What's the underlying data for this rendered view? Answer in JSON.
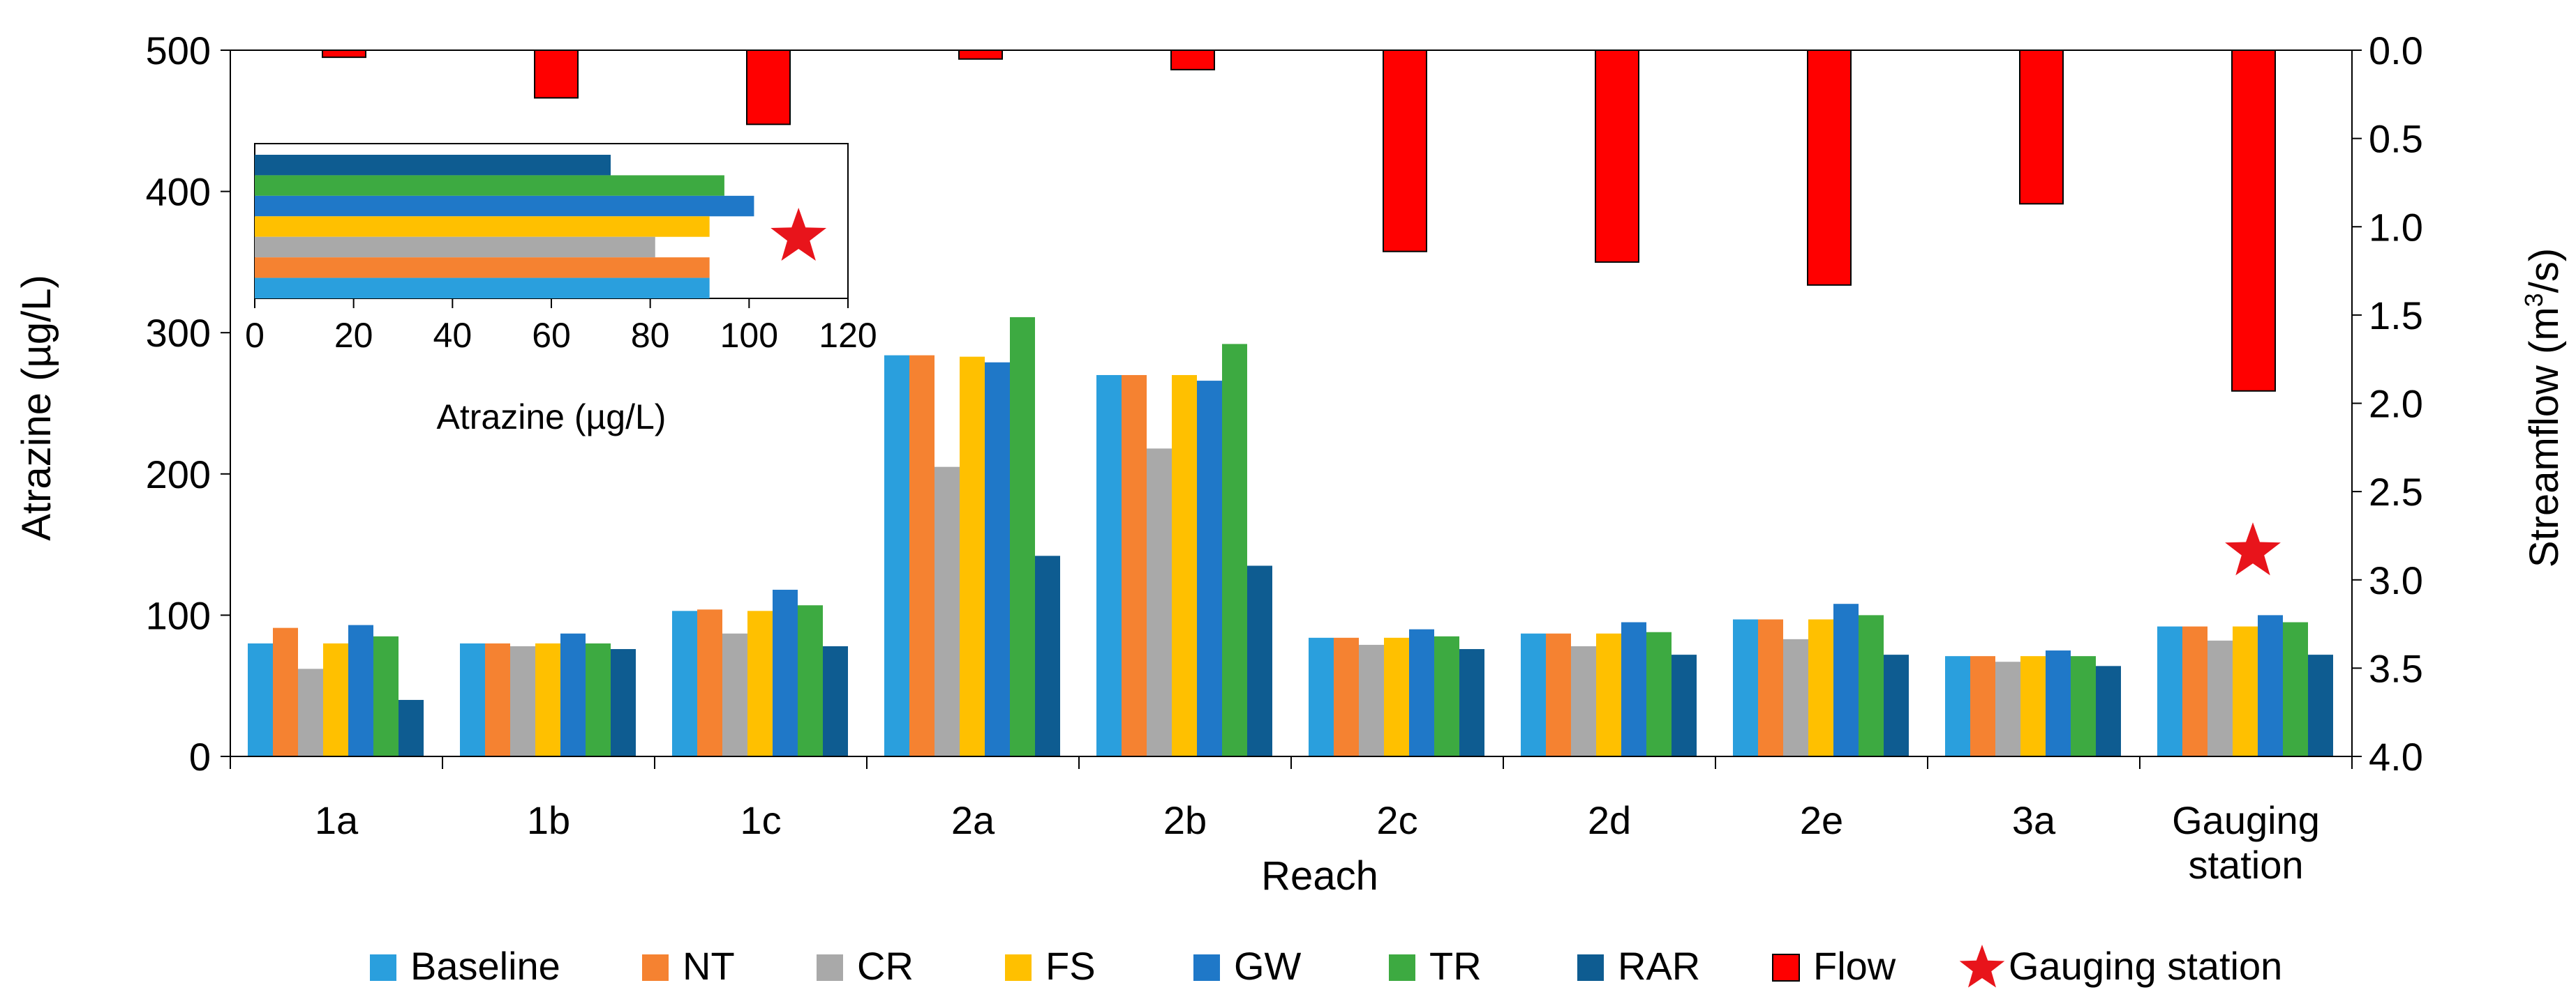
{
  "chart_data": [
    {
      "id": "main",
      "type": "bar",
      "xlabel": "Reach",
      "ylabel": "Atrazine (µg/L)",
      "y2label_base": "Streamflow (m",
      "y2label_sup": "3",
      "y2label_end": "/s)",
      "ylim": [
        0,
        500
      ],
      "yticks": [
        "0",
        "100",
        "200",
        "300",
        "400",
        "500"
      ],
      "y2lim": [
        0.0,
        4.0
      ],
      "y2_inverted": true,
      "y2ticks": [
        "0.0",
        "0.5",
        "1.0",
        "1.5",
        "2.0",
        "2.5",
        "3.0",
        "3.5",
        "4.0"
      ],
      "categories": [
        [
          "1a"
        ],
        [
          "1b"
        ],
        [
          "1c"
        ],
        [
          "2a"
        ],
        [
          "2b"
        ],
        [
          "2c"
        ],
        [
          "2d"
        ],
        [
          "2e"
        ],
        [
          "3a"
        ],
        [
          "Gauging",
          "station"
        ]
      ],
      "series": [
        {
          "name": "Baseline",
          "color": "#2A9FDD",
          "values": [
            80,
            80,
            103,
            284,
            270,
            84,
            87,
            97,
            71,
            92
          ]
        },
        {
          "name": "NT",
          "color": "#F58231",
          "values": [
            91,
            80,
            104,
            284,
            270,
            84,
            87,
            97,
            71,
            92
          ]
        },
        {
          "name": "CR",
          "color": "#A9A9A9",
          "values": [
            62,
            78,
            87,
            205,
            218,
            79,
            78,
            83,
            67,
            82
          ]
        },
        {
          "name": "FS",
          "color": "#FFC000",
          "values": [
            80,
            80,
            103,
            283,
            270,
            84,
            87,
            97,
            71,
            92
          ]
        },
        {
          "name": "GW",
          "color": "#1F78C8",
          "values": [
            93,
            87,
            118,
            279,
            266,
            90,
            95,
            108,
            75,
            100
          ]
        },
        {
          "name": "TR",
          "color": "#3DAA41",
          "values": [
            85,
            80,
            107,
            311,
            292,
            85,
            88,
            100,
            71,
            95
          ]
        },
        {
          "name": "RAR",
          "color": "#0E5C91",
          "values": [
            40,
            76,
            78,
            142,
            135,
            76,
            72,
            72,
            64,
            72
          ]
        }
      ],
      "flow": {
        "name": "Flow",
        "color": "#FF0000",
        "edge": "#000000",
        "values": [
          0.04,
          0.27,
          0.42,
          0.05,
          0.11,
          1.14,
          1.2,
          1.33,
          0.87,
          1.93
        ]
      },
      "star": {
        "category_index": 9,
        "y2_value": 2.84,
        "color": "#E8141B"
      }
    },
    {
      "id": "inset",
      "type": "bar",
      "orientation": "horizontal",
      "xlabel": "Atrazine (µg/L)",
      "xlim": [
        0,
        120
      ],
      "xticks": [
        "0",
        "20",
        "40",
        "60",
        "80",
        "100",
        "120"
      ],
      "series_order_top_to_bottom": [
        "RAR",
        "TR",
        "GW",
        "FS",
        "CR",
        "NT",
        "Baseline"
      ],
      "values": {
        "RAR": 72,
        "TR": 95,
        "GW": 101,
        "FS": 92,
        "CR": 81,
        "NT": 92,
        "Baseline": 92
      },
      "star": {
        "x_value": 110,
        "color": "#E8141B"
      }
    }
  ],
  "legend": {
    "items": [
      {
        "label": "Baseline",
        "color": "#2A9FDD",
        "kind": "bar"
      },
      {
        "label": "NT",
        "color": "#F58231",
        "kind": "bar"
      },
      {
        "label": "CR",
        "color": "#A9A9A9",
        "kind": "bar"
      },
      {
        "label": "FS",
        "color": "#FFC000",
        "kind": "bar"
      },
      {
        "label": "GW",
        "color": "#1F78C8",
        "kind": "bar"
      },
      {
        "label": "TR",
        "color": "#3DAA41",
        "kind": "bar"
      },
      {
        "label": "RAR",
        "color": "#0E5C91",
        "kind": "bar"
      },
      {
        "label": "Flow",
        "color": "#FF0000",
        "kind": "flow"
      },
      {
        "label": "Gauging station",
        "color": "#E8141B",
        "kind": "star"
      }
    ]
  }
}
